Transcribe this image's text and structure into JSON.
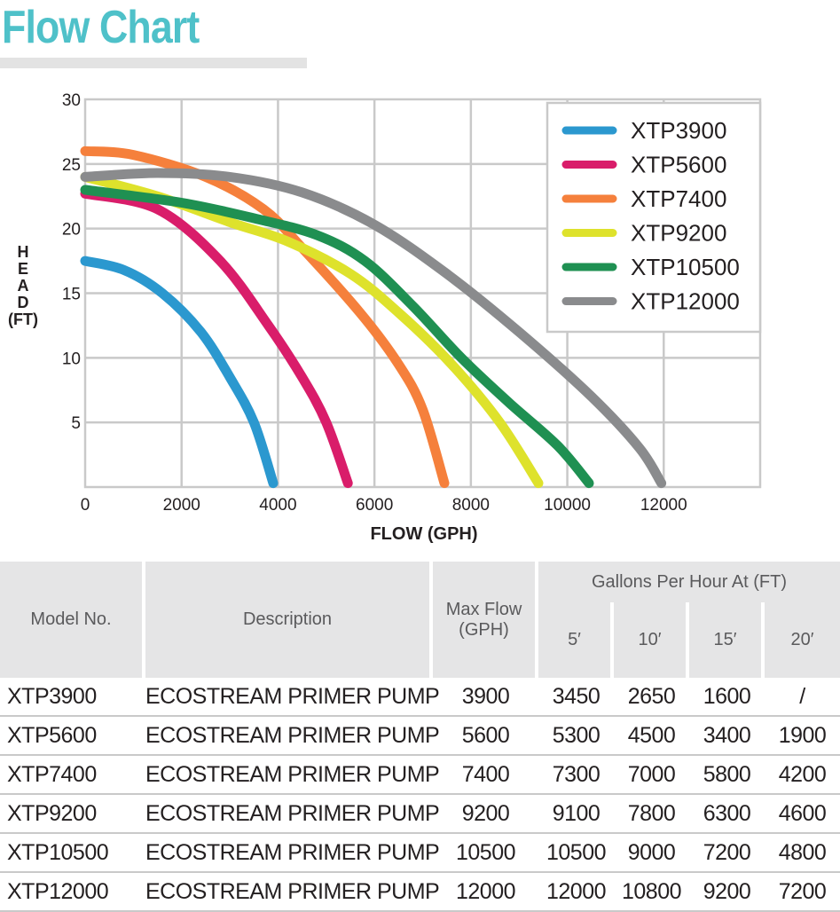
{
  "page": {
    "title": "Flow Chart"
  },
  "chart_data": {
    "type": "line",
    "xlabel": "FLOW (GPH)",
    "ylabel_letters": [
      "H",
      "E",
      "A",
      "D",
      "(FT)"
    ],
    "xlim": [
      0,
      14000
    ],
    "ylim": [
      0,
      30
    ],
    "xticks": [
      0,
      2000,
      4000,
      6000,
      8000,
      10000,
      12000
    ],
    "yticks": [
      5,
      10,
      15,
      20,
      25,
      30
    ],
    "grid": true,
    "legend_position": "top-right",
    "series": [
      {
        "name": "XTP3900",
        "color": "#2b98cf",
        "points": [
          [
            0,
            17.5
          ],
          [
            800,
            16.8
          ],
          [
            1600,
            15
          ],
          [
            2400,
            12
          ],
          [
            3000,
            8.5
          ],
          [
            3500,
            5
          ],
          [
            3900,
            0.3
          ]
        ]
      },
      {
        "name": "XTP5600",
        "color": "#d91d6a",
        "points": [
          [
            0,
            22.7
          ],
          [
            1500,
            21.5
          ],
          [
            2800,
            17.5
          ],
          [
            3800,
            12.5
          ],
          [
            4500,
            8.5
          ],
          [
            5000,
            5
          ],
          [
            5450,
            0.3
          ]
        ]
      },
      {
        "name": "XTP7400",
        "color": "#f5803c",
        "points": [
          [
            0,
            26
          ],
          [
            1000,
            25.7
          ],
          [
            2500,
            24
          ],
          [
            3700,
            21.5
          ],
          [
            4500,
            18.5
          ],
          [
            5700,
            13.5
          ],
          [
            6500,
            9.5
          ],
          [
            7000,
            6
          ],
          [
            7450,
            0.3
          ]
        ]
      },
      {
        "name": "XTP9200",
        "color": "#dee22c",
        "points": [
          [
            0,
            24
          ],
          [
            1500,
            22.5
          ],
          [
            3000,
            20.5
          ],
          [
            4200,
            19
          ],
          [
            5500,
            16.5
          ],
          [
            6500,
            13.5
          ],
          [
            7600,
            9.5
          ],
          [
            8600,
            5
          ],
          [
            9400,
            0.3
          ]
        ]
      },
      {
        "name": "XTP10500",
        "color": "#1f9052",
        "points": [
          [
            0,
            23
          ],
          [
            2000,
            22
          ],
          [
            3500,
            20.8
          ],
          [
            4800,
            19.5
          ],
          [
            5800,
            17.5
          ],
          [
            6800,
            14
          ],
          [
            7800,
            10
          ],
          [
            8800,
            6.5
          ],
          [
            9800,
            3.2
          ],
          [
            10450,
            0.3
          ]
        ]
      },
      {
        "name": "XTP12000",
        "color": "#8a8b8d",
        "points": [
          [
            0,
            24
          ],
          [
            1500,
            24.3
          ],
          [
            3000,
            24
          ],
          [
            4500,
            22.8
          ],
          [
            6000,
            20.3
          ],
          [
            7500,
            16.5
          ],
          [
            9000,
            12
          ],
          [
            10500,
            7
          ],
          [
            11500,
            3
          ],
          [
            11950,
            0.3
          ]
        ]
      }
    ]
  },
  "table": {
    "headers": {
      "model": "Model No.",
      "description": "Description",
      "max_flow": "Max Flow (GPH)",
      "group": "Gallons Per Hour At (FT)",
      "heads": [
        "5′",
        "10′",
        "15′",
        "20′"
      ]
    },
    "rows": [
      {
        "model": "XTP3900",
        "description": "ECOSTREAM PRIMER PUMP",
        "max_flow": "3900",
        "gph": [
          "3450",
          "2650",
          "1600",
          "/"
        ]
      },
      {
        "model": "XTP5600",
        "description": "ECOSTREAM PRIMER PUMP",
        "max_flow": "5600",
        "gph": [
          "5300",
          "4500",
          "3400",
          "1900"
        ]
      },
      {
        "model": "XTP7400",
        "description": "ECOSTREAM PRIMER PUMP",
        "max_flow": "7400",
        "gph": [
          "7300",
          "7000",
          "5800",
          "4200"
        ]
      },
      {
        "model": "XTP9200",
        "description": "ECOSTREAM PRIMER PUMP",
        "max_flow": "9200",
        "gph": [
          "9100",
          "7800",
          "6300",
          "4600"
        ]
      },
      {
        "model": "XTP10500",
        "description": "ECOSTREAM PRIMER PUMP",
        "max_flow": "10500",
        "gph": [
          "10500",
          "9000",
          "7200",
          "4800"
        ]
      },
      {
        "model": "XTP12000",
        "description": "ECOSTREAM PRIMER PUMP",
        "max_flow": "12000",
        "gph": [
          "12000",
          "10800",
          "9200",
          "7200"
        ]
      }
    ]
  }
}
